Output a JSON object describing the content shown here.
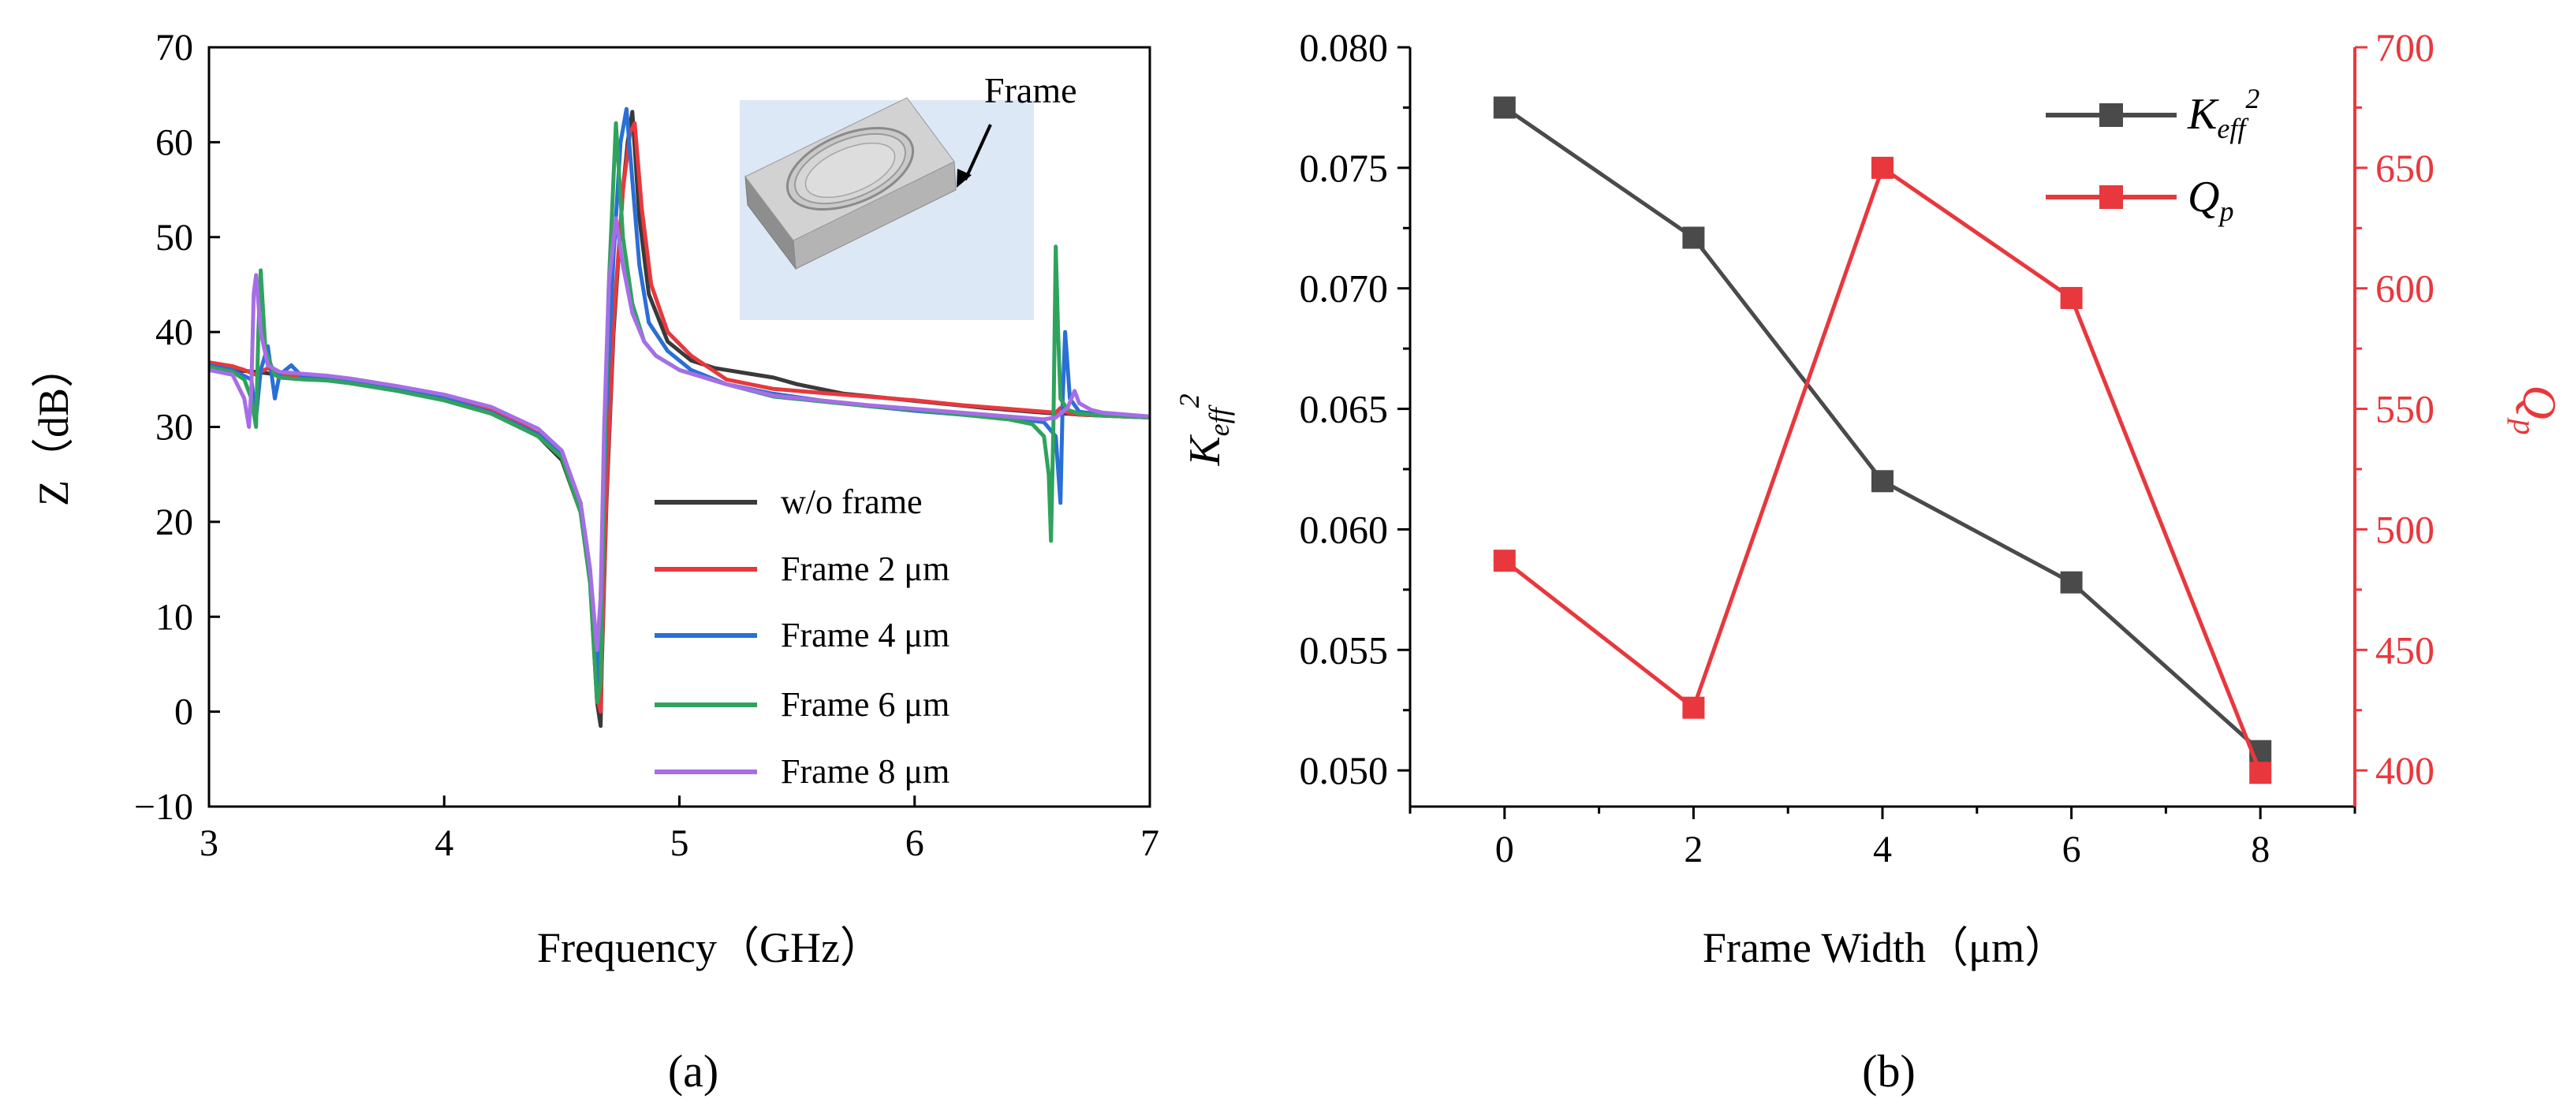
{
  "chart_data": [
    {
      "panel": "a",
      "type": "line",
      "panel_label": "(a)",
      "xlabel": "Frequency（GHz）",
      "ylabel": "Z（dB）",
      "xlim": [
        3,
        7
      ],
      "ylim": [
        -10,
        70
      ],
      "xticks": [
        "3",
        "4",
        "5",
        "6",
        "7"
      ],
      "yticks": [
        "−10",
        "0",
        "10",
        "20",
        "30",
        "40",
        "50",
        "60",
        "70"
      ],
      "inset_label": "Frame",
      "legend_position": "lower-right",
      "series": [
        {
          "name": "w/o frame",
          "color": "#3a3a3a",
          "x": [
            3.0,
            3.1,
            3.2,
            3.3,
            3.4,
            3.5,
            3.6,
            3.8,
            4.0,
            4.2,
            4.4,
            4.5,
            4.58,
            4.62,
            4.65,
            4.665,
            4.67,
            4.69,
            4.72,
            4.76,
            4.78,
            4.8,
            4.83,
            4.87,
            4.95,
            5.05,
            5.15,
            5.2,
            5.3,
            5.4,
            5.5,
            5.7,
            5.9,
            6.1,
            6.3,
            6.5,
            6.6,
            6.65,
            6.7,
            6.8,
            7.0
          ],
          "y": [
            36.5,
            36.0,
            35.8,
            35.5,
            35.2,
            35.0,
            34.8,
            34.0,
            33.0,
            31.5,
            29.0,
            26.5,
            21.0,
            14.0,
            1.0,
            -1.5,
            5.0,
            22.0,
            40.0,
            55.0,
            60.0,
            63.2,
            52.0,
            44.0,
            39.0,
            37.0,
            36.2,
            36.0,
            35.6,
            35.2,
            34.5,
            33.5,
            33.0,
            32.5,
            32.0,
            31.6,
            31.4,
            31.4,
            31.3,
            31.2,
            31.0
          ]
        },
        {
          "name": "Frame 2 μm",
          "color": "#e8383d",
          "x": [
            3.0,
            3.1,
            3.15,
            3.2,
            3.25,
            3.3,
            3.4,
            3.5,
            3.6,
            3.8,
            4.0,
            4.2,
            4.4,
            4.5,
            4.58,
            4.62,
            4.65,
            4.665,
            4.67,
            4.69,
            4.72,
            4.76,
            4.79,
            4.81,
            4.84,
            4.88,
            4.95,
            5.05,
            5.2,
            5.4,
            5.6,
            5.8,
            6.0,
            6.2,
            6.4,
            6.55,
            6.6,
            6.62,
            6.65,
            6.7,
            6.8,
            7.0
          ],
          "y": [
            36.8,
            36.4,
            36.0,
            35.5,
            36.2,
            35.6,
            35.3,
            35.4,
            34.9,
            34.1,
            33.2,
            31.8,
            29.3,
            27.0,
            21.5,
            14.0,
            1.5,
            0.0,
            6.0,
            23.0,
            41.0,
            55.0,
            61.0,
            62.0,
            53.0,
            45.0,
            40.0,
            37.5,
            35.0,
            34.0,
            33.6,
            33.2,
            32.8,
            32.3,
            31.9,
            31.6,
            31.5,
            32.0,
            31.5,
            31.3,
            31.2,
            31.0
          ]
        },
        {
          "name": "Frame 4 μm",
          "color": "#2a6fd6",
          "x": [
            3.0,
            3.1,
            3.18,
            3.2,
            3.22,
            3.25,
            3.28,
            3.3,
            3.35,
            3.4,
            3.5,
            3.6,
            3.8,
            4.0,
            4.2,
            4.4,
            4.5,
            4.58,
            4.62,
            4.65,
            4.66,
            4.675,
            4.69,
            4.72,
            4.75,
            4.775,
            4.8,
            4.83,
            4.87,
            4.95,
            5.05,
            5.2,
            5.4,
            5.6,
            5.8,
            6.0,
            6.2,
            6.4,
            6.55,
            6.6,
            6.62,
            6.63,
            6.64,
            6.66,
            6.7,
            6.8,
            7.0
          ],
          "y": [
            36.5,
            36.0,
            35.0,
            31.0,
            36.0,
            38.5,
            33.0,
            35.5,
            36.5,
            35.2,
            35.0,
            34.8,
            34.0,
            33.0,
            31.5,
            29.2,
            27.0,
            22.0,
            15.0,
            3.0,
            8.0,
            20.0,
            32.0,
            48.0,
            60.0,
            63.5,
            56.0,
            47.0,
            41.0,
            38.0,
            36.0,
            34.5,
            33.5,
            32.8,
            32.2,
            31.7,
            31.3,
            31.0,
            30.5,
            29.0,
            22.0,
            33.0,
            40.0,
            33.0,
            31.6,
            31.3,
            31.0
          ]
        },
        {
          "name": "Frame 6 μm",
          "color": "#2fa35c",
          "x": [
            3.0,
            3.1,
            3.15,
            3.18,
            3.2,
            3.21,
            3.22,
            3.24,
            3.28,
            3.3,
            3.4,
            3.5,
            3.6,
            3.8,
            4.0,
            4.2,
            4.4,
            4.5,
            4.58,
            4.62,
            4.65,
            4.665,
            4.68,
            4.7,
            4.73,
            4.76,
            4.8,
            4.85,
            4.9,
            5.0,
            5.2,
            5.4,
            5.6,
            5.8,
            6.0,
            6.2,
            6.4,
            6.5,
            6.55,
            6.57,
            6.58,
            6.59,
            6.6,
            6.61,
            6.62,
            6.65,
            6.7,
            6.8,
            7.0
          ],
          "y": [
            36.3,
            35.8,
            35.0,
            33.0,
            30.0,
            40.0,
            46.5,
            38.0,
            35.5,
            35.2,
            35.0,
            34.9,
            34.6,
            33.8,
            32.8,
            31.4,
            29.0,
            26.8,
            21.0,
            13.5,
            1.0,
            3.0,
            25.0,
            45.0,
            62.0,
            50.0,
            43.0,
            39.0,
            37.5,
            36.0,
            34.5,
            33.2,
            32.7,
            32.2,
            31.8,
            31.3,
            30.8,
            30.3,
            29.0,
            25.0,
            18.0,
            30.0,
            49.0,
            40.0,
            33.0,
            31.8,
            31.4,
            31.2,
            31.0
          ]
        },
        {
          "name": "Frame 8 μm",
          "color": "#a66ee6",
          "x": [
            3.0,
            3.1,
            3.15,
            3.17,
            3.18,
            3.19,
            3.2,
            3.22,
            3.25,
            3.3,
            3.4,
            3.5,
            3.6,
            3.8,
            4.0,
            4.2,
            4.4,
            4.5,
            4.58,
            4.62,
            4.65,
            4.665,
            4.68,
            4.7,
            4.73,
            4.76,
            4.8,
            4.85,
            4.9,
            5.0,
            5.2,
            5.4,
            5.6,
            5.8,
            6.0,
            6.2,
            6.4,
            6.55,
            6.6,
            6.65,
            6.68,
            6.7,
            6.75,
            6.8,
            7.0
          ],
          "y": [
            36.0,
            35.5,
            33.0,
            30.0,
            34.0,
            44.0,
            46.0,
            40.0,
            36.5,
            35.8,
            35.6,
            35.4,
            35.1,
            34.3,
            33.4,
            32.1,
            29.8,
            27.5,
            22.0,
            15.0,
            6.5,
            12.0,
            30.0,
            45.0,
            52.0,
            47.0,
            42.0,
            39.0,
            37.5,
            36.0,
            34.5,
            33.3,
            32.8,
            32.3,
            31.9,
            31.5,
            31.1,
            30.8,
            31.0,
            32.0,
            33.8,
            32.5,
            31.8,
            31.5,
            31.1
          ]
        }
      ]
    },
    {
      "panel": "b",
      "type": "line",
      "panel_label": "(b)",
      "xlabel": "Frame Width（μm）",
      "xlim": [
        -1,
        9
      ],
      "xticks": [
        "0",
        "2",
        "4",
        "6",
        "8"
      ],
      "legend_position": "top-right",
      "x": [
        0,
        2,
        4,
        6,
        8
      ],
      "left_axis": {
        "label_base": "K",
        "label_sub": "eff",
        "label_sup": "2",
        "ylim": [
          0.0485,
          0.08
        ],
        "ticks": [
          "0.050",
          "0.055",
          "0.060",
          "0.065",
          "0.070",
          "0.075",
          "0.080"
        ],
        "color": "#000000"
      },
      "right_axis": {
        "label_base": "Q",
        "label_sub": "p",
        "ylim": [
          385,
          700
        ],
        "ticks": [
          "400",
          "450",
          "500",
          "550",
          "600",
          "650",
          "700"
        ],
        "color": "#e8383d"
      },
      "series": [
        {
          "name_base": "K",
          "name_sub": "eff",
          "name_sup": "2",
          "axis": "left",
          "color": "#4a4a4a",
          "values": [
            0.0775,
            0.0721,
            0.062,
            0.0578,
            0.0508
          ]
        },
        {
          "name_base": "Q",
          "name_sub": "p",
          "axis": "right",
          "color": "#e8383d",
          "values": [
            487,
            426,
            650,
            596,
            399
          ]
        }
      ]
    }
  ]
}
